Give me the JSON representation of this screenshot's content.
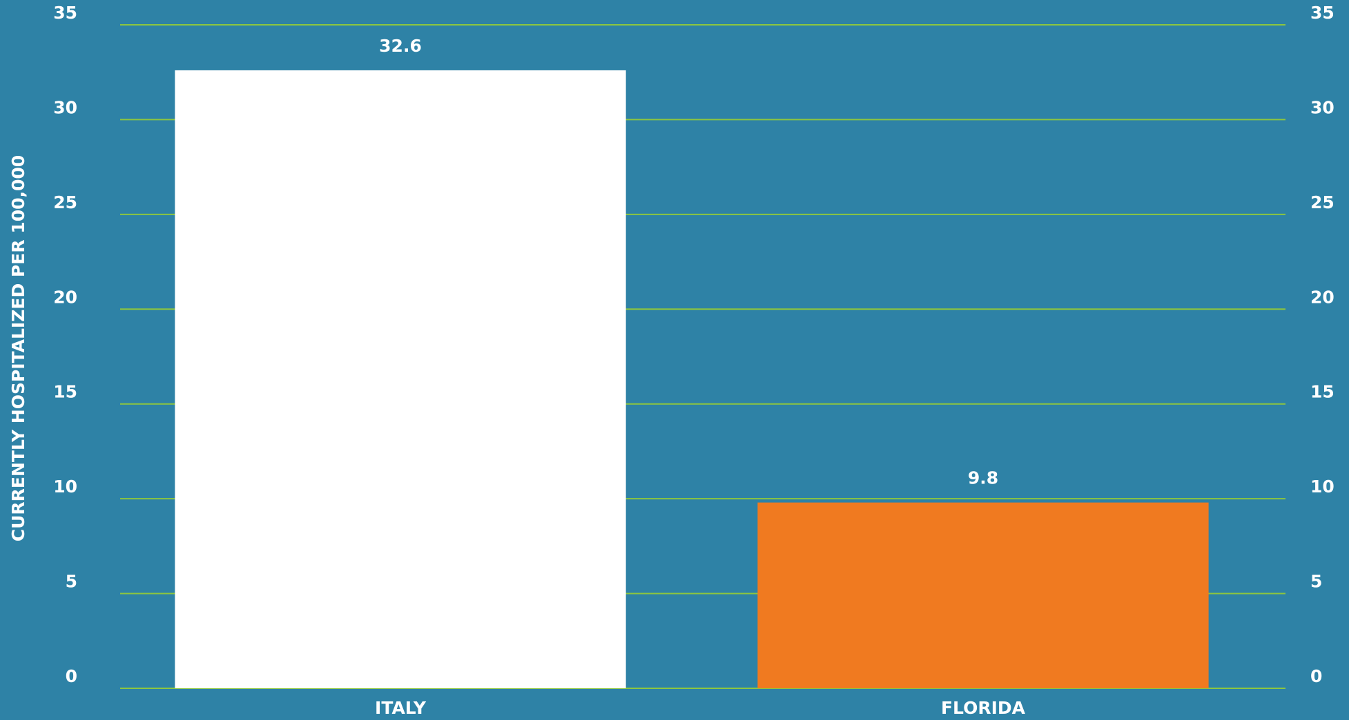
{
  "chart_data": {
    "type": "bar",
    "y_axis_label": "CURRENTLY HOSPITALIZED PER 100,000",
    "categories": [
      "ITALY",
      "FLORIDA"
    ],
    "values": [
      32.6,
      9.8
    ],
    "colors": [
      "#ffffff",
      "#f07a20"
    ],
    "background": "#2e82a6",
    "grid_color": "#8dc63f",
    "ylim": [
      0,
      35
    ],
    "yticks": [
      0,
      5,
      10,
      15,
      20,
      25,
      30,
      35
    ],
    "y2lim": [
      0,
      35
    ],
    "y2ticks": [
      0,
      5,
      10,
      15,
      20,
      25,
      30,
      35
    ],
    "grid": true
  }
}
